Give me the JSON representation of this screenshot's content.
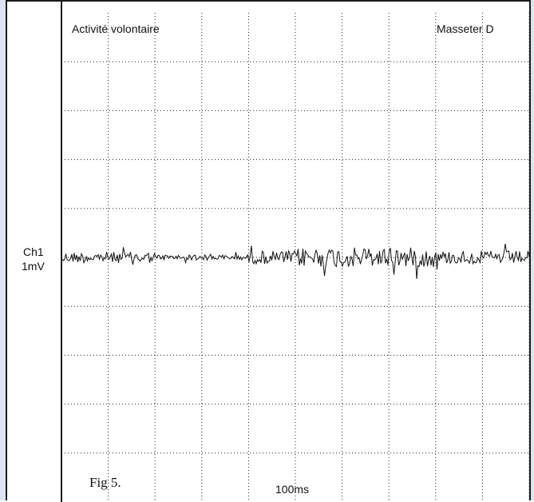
{
  "chart_data": {
    "type": "line",
    "title": "Activité volontaire",
    "muscle_label": "Masseter D",
    "channel_label": "Ch1",
    "scale_label": "1mV",
    "timebase_label": "100ms",
    "caption": "Fig 5.",
    "grid": true,
    "x_divisions": 10,
    "y_divisions": 10,
    "x_division_value_ms": 100,
    "y_division_value_mV": 1,
    "baseline_division": 5,
    "segments": [
      {
        "start_div": 0.0,
        "end_div": 2.0,
        "peak_amplitude_div": 0.25
      },
      {
        "start_div": 2.0,
        "end_div": 4.0,
        "peak_amplitude_div": 0.12
      },
      {
        "start_div": 4.0,
        "end_div": 5.0,
        "peak_amplitude_div": 0.3
      },
      {
        "start_div": 5.0,
        "end_div": 8.0,
        "peak_amplitude_div": 0.45
      },
      {
        "start_div": 8.0,
        "end_div": 10.0,
        "peak_amplitude_div": 0.3
      }
    ],
    "colors": {
      "trace": "#111111",
      "grid": "#222222",
      "panel_border": "#1a1a1a",
      "background": "#dbe4ef"
    }
  }
}
